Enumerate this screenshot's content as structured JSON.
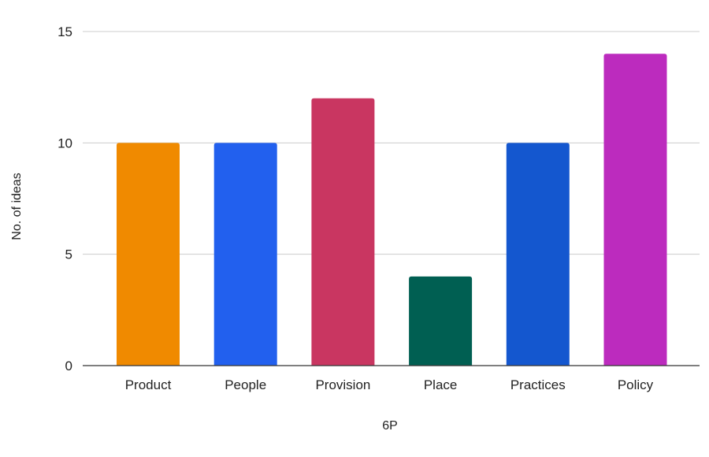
{
  "chart_data": {
    "type": "bar",
    "title": "",
    "xlabel": "6P",
    "ylabel": "No. of ideas",
    "categories": [
      "Product",
      "People",
      "Provision",
      "Place",
      "Practices",
      "Policy"
    ],
    "values": [
      10,
      10,
      12,
      4,
      10,
      14
    ],
    "bar_colors": [
      "#F08A00",
      "#2260EE",
      "#C93661",
      "#005F52",
      "#1457CF",
      "#BC2BBE"
    ],
    "ylim": [
      0,
      15
    ],
    "yticks": [
      0,
      5,
      10,
      15
    ],
    "grid": true,
    "legend": "none"
  }
}
